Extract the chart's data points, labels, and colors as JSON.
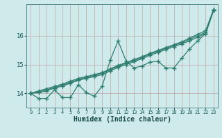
{
  "xlabel": "Humidex (Indice chaleur)",
  "xlim": [
    -0.5,
    23.5
  ],
  "ylim": [
    13.5,
    17.1
  ],
  "yticks": [
    14,
    15,
    16
  ],
  "xticks": [
    0,
    1,
    2,
    3,
    4,
    5,
    6,
    7,
    8,
    9,
    10,
    11,
    12,
    13,
    14,
    15,
    16,
    17,
    18,
    19,
    20,
    21,
    22,
    23
  ],
  "bg_color": "#ceeaea",
  "line_color": "#2e7d6e",
  "grid_color_v": "#c0a8a8",
  "grid_color_h": "#c0a8a8",
  "series": [
    [
      14.0,
      13.82,
      13.82,
      14.12,
      13.85,
      13.85,
      14.3,
      14.02,
      13.9,
      14.25,
      15.15,
      15.82,
      15.12,
      14.88,
      14.95,
      15.08,
      15.12,
      14.88,
      14.88,
      15.22,
      15.55,
      15.82,
      16.08,
      16.88
    ],
    [
      14.0,
      14.02,
      14.08,
      14.18,
      14.25,
      14.35,
      14.45,
      14.52,
      14.58,
      14.65,
      14.78,
      14.9,
      15.0,
      15.1,
      15.2,
      15.32,
      15.42,
      15.52,
      15.62,
      15.72,
      15.82,
      15.95,
      16.08,
      16.88
    ],
    [
      14.0,
      14.05,
      14.12,
      14.2,
      14.28,
      14.38,
      14.48,
      14.55,
      14.62,
      14.7,
      14.82,
      14.94,
      15.04,
      15.14,
      15.24,
      15.36,
      15.46,
      15.56,
      15.66,
      15.76,
      15.88,
      16.0,
      16.12,
      16.9
    ],
    [
      14.0,
      14.08,
      14.16,
      14.24,
      14.32,
      14.42,
      14.52,
      14.58,
      14.65,
      14.72,
      14.85,
      14.97,
      15.07,
      15.17,
      15.27,
      15.39,
      15.49,
      15.59,
      15.69,
      15.79,
      15.92,
      16.05,
      16.18,
      16.92
    ]
  ],
  "marker_series": [
    0
  ],
  "marker": "+",
  "markersize": 4.5
}
